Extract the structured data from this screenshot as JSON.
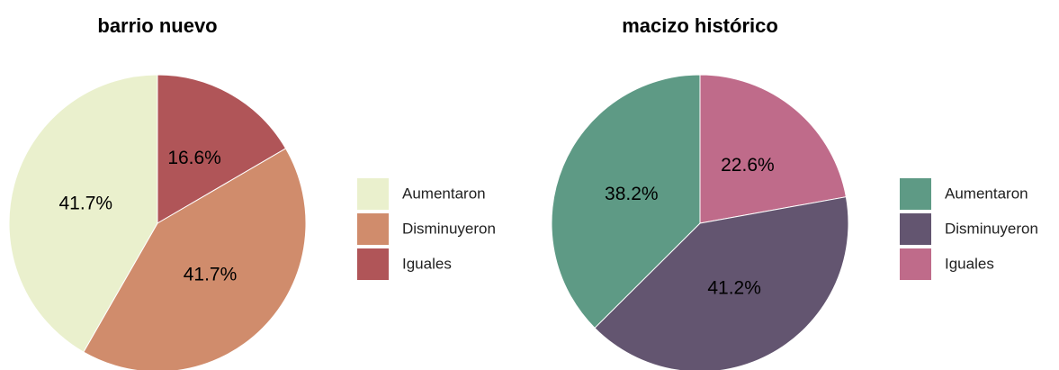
{
  "chart_data": [
    {
      "type": "pie",
      "title": "barrio nuevo",
      "categories": [
        "Aumentaron",
        "Disminuyeron",
        "Iguales"
      ],
      "values": [
        41.7,
        41.7,
        16.6
      ],
      "value_labels": [
        "41.7%",
        "41.7%",
        "16.6%"
      ],
      "colors": [
        "#eaf0cd",
        "#d08c6c",
        "#b05558"
      ],
      "legend": "right"
    },
    {
      "type": "pie",
      "title": "macizo histórico",
      "categories": [
        "Aumentaron",
        "Disminuyeron",
        "Iguales"
      ],
      "values": [
        38.2,
        41.2,
        22.6
      ],
      "value_labels": [
        "38.2%",
        "41.2%",
        "22.6%"
      ],
      "colors": [
        "#5e9a85",
        "#635570",
        "#bf6b8a"
      ],
      "legend": "right"
    }
  ]
}
